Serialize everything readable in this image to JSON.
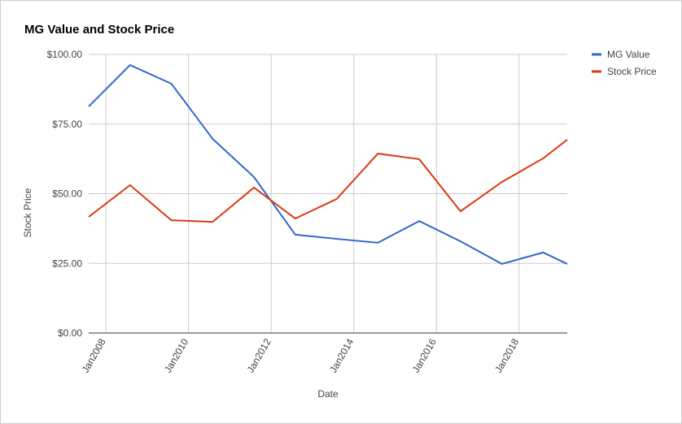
{
  "chart_data": {
    "type": "line",
    "title": "MG Value and Stock Price",
    "x_label": "Date",
    "y_label": "Stock Price",
    "x": [
      "2007-08",
      "2008-08",
      "2009-08",
      "2010-08",
      "2011-08",
      "2012-08",
      "2013-08",
      "2014-08",
      "2015-08",
      "2016-08",
      "2017-08",
      "2018-08",
      "2019-03"
    ],
    "xlim": [
      "2007-08",
      "2019-03"
    ],
    "xticks": [
      {
        "value": "2008-01",
        "label": "Jan2008"
      },
      {
        "value": "2010-01",
        "label": "Jan2010"
      },
      {
        "value": "2012-01",
        "label": "Jan2012"
      },
      {
        "value": "2014-01",
        "label": "Jan2014"
      },
      {
        "value": "2016-01",
        "label": "Jan2016"
      },
      {
        "value": "2018-01",
        "label": "Jan2018"
      }
    ],
    "ylim": [
      0,
      100
    ],
    "yticks": [
      {
        "value": 0,
        "label": "$0.00"
      },
      {
        "value": 25,
        "label": "$25.00"
      },
      {
        "value": 50,
        "label": "$50.00"
      },
      {
        "value": 75,
        "label": "$75.00"
      },
      {
        "value": 100,
        "label": "$100.00"
      }
    ],
    "grid": true,
    "legend": "right",
    "series": [
      {
        "name": "MG Value",
        "color": "#3366cc",
        "values": [
          81.3,
          96.2,
          89.5,
          69.7,
          56.0,
          35.3,
          33.8,
          32.4,
          40.2,
          32.9,
          24.8,
          28.9,
          24.8
        ]
      },
      {
        "name": "Stock Price",
        "color": "#dc3912",
        "values": [
          41.7,
          53.1,
          40.5,
          39.9,
          52.2,
          41.1,
          48.1,
          64.4,
          62.4,
          43.7,
          54.2,
          62.7,
          69.4
        ]
      }
    ]
  }
}
